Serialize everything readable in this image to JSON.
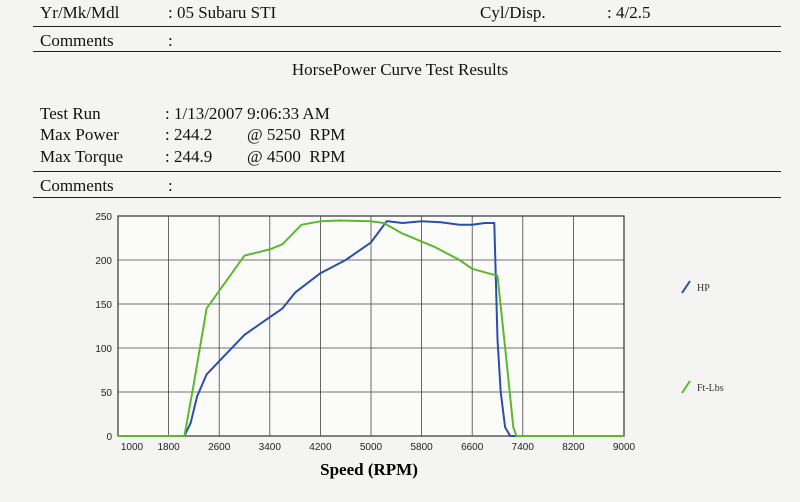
{
  "header": {
    "vehicle_label": "Yr/Mk/Mdl",
    "vehicle_value": ": 05 Subaru STI",
    "cyl_label": "Cyl/Disp.",
    "cyl_value": ": 4/2.5",
    "comments_label": "Comments",
    "comments_value": ":"
  },
  "report_title": "HorsePower Curve Test Results",
  "test": {
    "run_label": "Test Run",
    "run_value": ": 1/13/2007 9:06:33 AM",
    "power_label": "Max Power",
    "power_value": ": 244.2",
    "power_rpm": "@ 5250  RPM",
    "torque_label": "Max Torque",
    "torque_value": ": 244.9",
    "torque_rpm": "@ 4500  RPM",
    "comments_label": "Comments",
    "comments_value": ":"
  },
  "chart_data": {
    "type": "line",
    "title": "",
    "xlabel": "Speed (RPM)",
    "ylabel": "",
    "xlim": [
      1000,
      9000
    ],
    "ylim": [
      0,
      250
    ],
    "x_ticks": [
      "1000",
      "1800",
      "2600",
      "3400",
      "4200",
      "5000",
      "5800",
      "6600",
      "7400",
      "8200",
      "9000"
    ],
    "y_ticks": [
      "0",
      "50",
      "100",
      "150",
      "200",
      "250"
    ],
    "grid": true,
    "legend_position": "right",
    "colors": {
      "HP": "#2b4fa8",
      "Ft-Lbs": "#5cb82e"
    },
    "series": [
      {
        "name": "HP",
        "points": [
          [
            1000,
            0
          ],
          [
            2050,
            0
          ],
          [
            2150,
            15
          ],
          [
            2250,
            45
          ],
          [
            2400,
            70
          ],
          [
            2600,
            85
          ],
          [
            3000,
            115
          ],
          [
            3400,
            135
          ],
          [
            3600,
            145
          ],
          [
            3800,
            163
          ],
          [
            4200,
            185
          ],
          [
            4600,
            200
          ],
          [
            5000,
            220
          ],
          [
            5250,
            244.2
          ],
          [
            5500,
            242
          ],
          [
            5800,
            244
          ],
          [
            6100,
            243
          ],
          [
            6400,
            240
          ],
          [
            6600,
            240
          ],
          [
            6800,
            242
          ],
          [
            6950,
            242
          ],
          [
            7000,
            110
          ],
          [
            7050,
            50
          ],
          [
            7120,
            10
          ],
          [
            7200,
            0
          ],
          [
            9000,
            0
          ]
        ]
      },
      {
        "name": "Ft-Lbs",
        "points": [
          [
            1000,
            0
          ],
          [
            2050,
            0
          ],
          [
            2200,
            60
          ],
          [
            2400,
            145
          ],
          [
            2600,
            165
          ],
          [
            2800,
            185
          ],
          [
            3000,
            205
          ],
          [
            3400,
            212
          ],
          [
            3600,
            218
          ],
          [
            3900,
            240
          ],
          [
            4200,
            244
          ],
          [
            4500,
            244.9
          ],
          [
            5000,
            244
          ],
          [
            5200,
            242
          ],
          [
            5500,
            230
          ],
          [
            6000,
            215
          ],
          [
            6400,
            200
          ],
          [
            6600,
            190
          ],
          [
            6800,
            186
          ],
          [
            7000,
            182
          ],
          [
            7150,
            80
          ],
          [
            7250,
            10
          ],
          [
            7300,
            0
          ],
          [
            9000,
            0
          ]
        ]
      }
    ]
  }
}
